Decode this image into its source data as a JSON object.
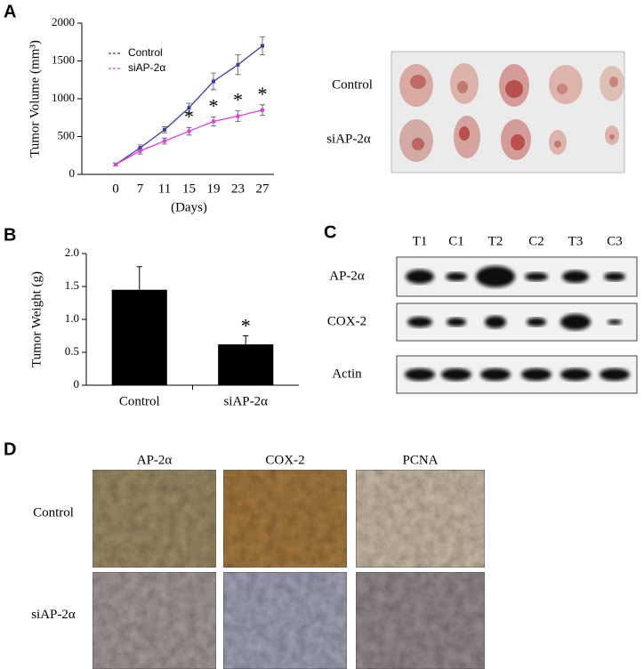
{
  "panel_labels": [
    "A",
    "B",
    "C",
    "D"
  ],
  "chart_data": [
    {
      "type": "line",
      "ylabel": "Tumor Volume (mm³)",
      "xlabel": "(Days)",
      "categories": [
        "0",
        "7",
        "11",
        "15",
        "19",
        "23",
        "27"
      ],
      "ylim": [
        0,
        2000
      ],
      "yticks": [
        0,
        500,
        1000,
        1500,
        2000
      ],
      "series": [
        {
          "name": "Control",
          "color": "#3a3aa8",
          "values": [
            130,
            350,
            590,
            880,
            1230,
            1450,
            1700
          ],
          "errors": [
            20,
            40,
            40,
            60,
            110,
            130,
            120
          ]
        },
        {
          "name": "siAP-2α",
          "color": "#e040e0",
          "values": [
            130,
            310,
            440,
            570,
            700,
            770,
            850
          ],
          "errors": [
            20,
            40,
            40,
            50,
            60,
            70,
            70
          ],
          "significance": [
            null,
            null,
            null,
            "*",
            "*",
            "*",
            "*"
          ]
        }
      ]
    },
    {
      "type": "bar",
      "ylabel": "Tumor Weight (g)",
      "categories": [
        "Control",
        "siAP-2α"
      ],
      "values": [
        1.45,
        0.62
      ],
      "errors": [
        0.35,
        0.13
      ],
      "significance": [
        null,
        "*"
      ],
      "color": "#000000",
      "ylim": [
        0,
        2
      ],
      "yticks": [
        0,
        0.5,
        {
          "value": 1,
          "label": "1.0"
        },
        {
          "value": 1.5,
          "label": "1.5"
        },
        {
          "value": 2,
          "label": "2.0"
        }
      ]
    }
  ],
  "tumor_photo": {
    "rows": [
      "Control",
      "siAP-2α"
    ]
  },
  "western_blot": {
    "lanes": [
      "T1",
      "C1",
      "T2",
      "C2",
      "T3",
      "C3"
    ],
    "rows": [
      "AP-2α",
      "COX-2",
      "Actin"
    ]
  },
  "ihc": {
    "columns": [
      "AP-2α",
      "COX-2",
      "PCNA"
    ],
    "rows": [
      "Control",
      "siAP-2α"
    ]
  }
}
